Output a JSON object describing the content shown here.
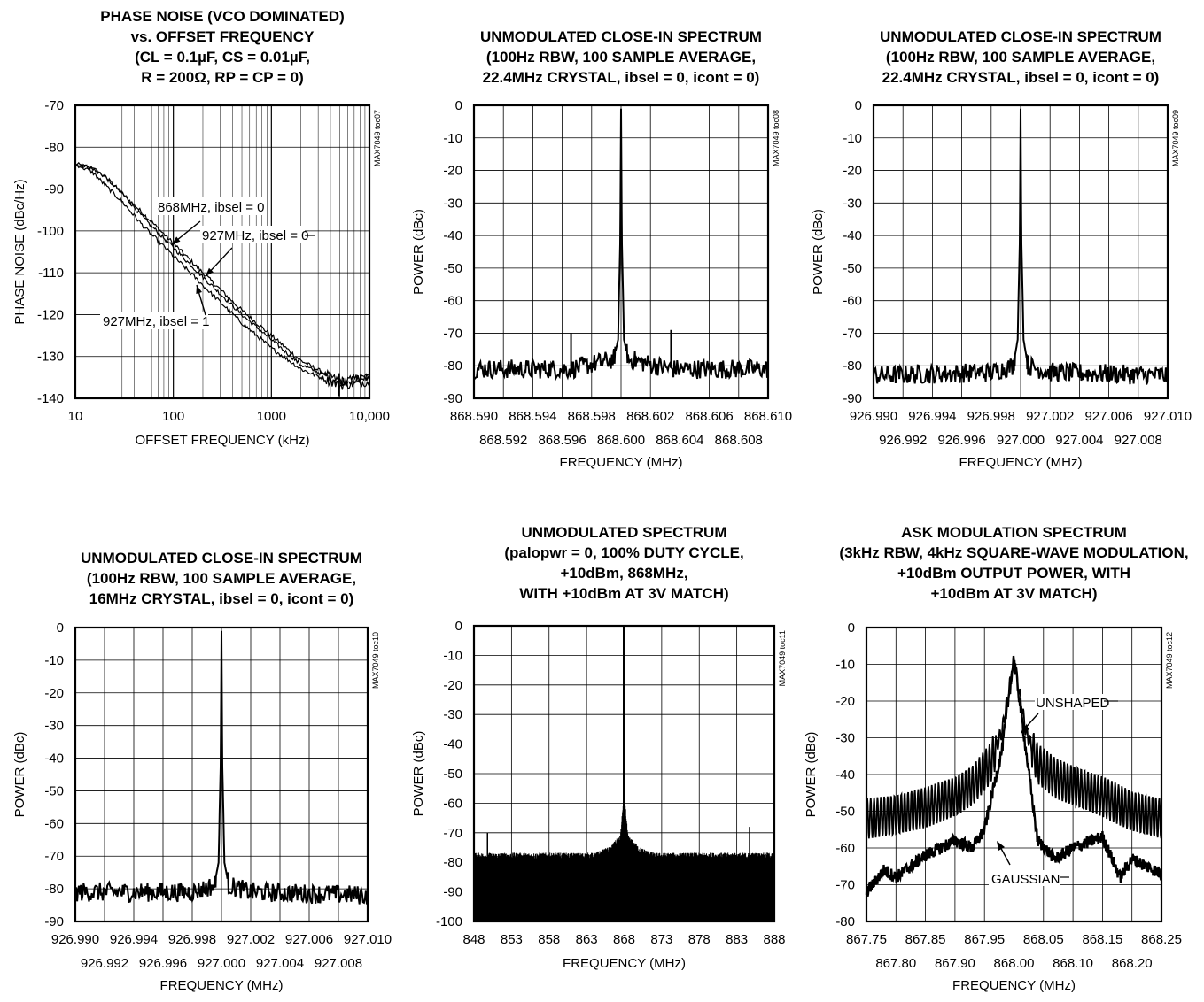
{
  "chart_data": [
    {
      "type": "line",
      "title_lines": [
        "PHASE NOISE (VCO DOMINATED)",
        "vs. OFFSET FREQUENCY",
        "(CL = 0.1µF, CS = 0.01µF,",
        "R = 200Ω, RP = CP = 0)"
      ],
      "xlabel": "OFFSET FREQUENCY (kHz)",
      "ylabel": "PHASE NOISE (dBc/Hz)",
      "tag": "MAX7049 toc07",
      "xscale": "log",
      "xlim": [
        10,
        10000
      ],
      "ylim": [
        -140,
        -70
      ],
      "x_ticks": [
        "10",
        "100",
        "1000",
        "10,000"
      ],
      "y_ticks": [
        "-70",
        "-80",
        "-90",
        "-100",
        "-110",
        "-120",
        "-130",
        "-140"
      ],
      "grid": true,
      "series": [
        {
          "name": "868MHz, ibsel = 0",
          "x": [
            10,
            15,
            20,
            30,
            50,
            100,
            200,
            500,
            1000,
            2000,
            5000,
            10000
          ],
          "y": [
            -84,
            -85,
            -87,
            -91,
            -96,
            -103,
            -110,
            -119,
            -125,
            -131,
            -136,
            -135
          ]
        },
        {
          "name": "927MHz, ibsel = 0",
          "x": [
            10,
            15,
            20,
            30,
            50,
            100,
            200,
            500,
            1000,
            2000,
            5000,
            10000
          ],
          "y": [
            -84,
            -85,
            -87,
            -91,
            -97,
            -104,
            -111,
            -120,
            -126,
            -132,
            -136,
            -135
          ]
        },
        {
          "name": "927MHz, ibsel = 1",
          "x": [
            10,
            15,
            20,
            30,
            50,
            100,
            200,
            500,
            1000,
            2000,
            5000,
            10000
          ],
          "y": [
            -84,
            -86,
            -89,
            -93,
            -99,
            -106,
            -113,
            -122,
            -128,
            -133,
            -137,
            -136
          ]
        }
      ],
      "annotations": [
        "868MHz, ibsel = 0",
        "927MHz, ibsel = 0",
        "927MHz, ibsel = 1"
      ]
    },
    {
      "type": "line",
      "title_lines": [
        "UNMODULATED CLOSE-IN SPECTRUM",
        "(100Hz RBW, 100 SAMPLE AVERAGE,",
        "22.4MHz CRYSTAL, ibsel = 0, icont = 0)"
      ],
      "xlabel": "FREQUENCY (MHz)",
      "ylabel": "POWER (dBc)",
      "tag": "MAX7049 toc08",
      "xlim": [
        868.59,
        868.61
      ],
      "ylim": [
        -90,
        0
      ],
      "x_ticks_top": [
        "868.590",
        "868.594",
        "868.598",
        "868.602",
        "868.606",
        "868.610"
      ],
      "x_ticks_bottom": [
        "868.592",
        "868.596",
        "868.600",
        "868.604",
        "868.608"
      ],
      "y_ticks": [
        "0",
        "-10",
        "-20",
        "-30",
        "-40",
        "-50",
        "-60",
        "-70",
        "-80",
        "-90"
      ],
      "grid": true,
      "series": [
        {
          "x": [
            868.59,
            868.5966,
            868.5995,
            868.5998,
            868.59995,
            868.6,
            868.60005,
            868.6002,
            868.6005,
            868.6034,
            868.61
          ],
          "y": [
            -81,
            -81,
            -78,
            -72,
            -40,
            -1,
            -40,
            -72,
            -78,
            -81,
            -81
          ]
        }
      ],
      "spurs": [
        {
          "x": 868.5966,
          "y": -70
        },
        {
          "x": 868.6034,
          "y": -69
        }
      ]
    },
    {
      "type": "line",
      "title_lines": [
        "UNMODULATED CLOSE-IN SPECTRUM",
        "(100Hz RBW, 100 SAMPLE AVERAGE,",
        "22.4MHz CRYSTAL, ibsel = 0, icont = 0)"
      ],
      "xlabel": "FREQUENCY (MHz)",
      "ylabel": "POWER (dBc)",
      "tag": "MAX7049 toc09",
      "xlim": [
        926.99,
        927.01
      ],
      "ylim": [
        -90,
        0
      ],
      "x_ticks_top": [
        "926.990",
        "926.994",
        "926.998",
        "927.002",
        "927.006",
        "927.010"
      ],
      "x_ticks_bottom": [
        "926.992",
        "926.996",
        "927.000",
        "927.004",
        "927.008"
      ],
      "y_ticks": [
        "0",
        "-10",
        "-20",
        "-30",
        "-40",
        "-50",
        "-60",
        "-70",
        "-80",
        "-90"
      ],
      "grid": true,
      "series": [
        {
          "x": [
            926.99,
            926.998,
            926.9995,
            926.9998,
            926.99995,
            927.0,
            927.00005,
            927.0002,
            927.0005,
            927.002,
            927.01
          ],
          "y": [
            -83,
            -82,
            -80,
            -72,
            -40,
            -1,
            -40,
            -72,
            -80,
            -82,
            -83
          ]
        }
      ]
    },
    {
      "type": "line",
      "title_lines": [
        "UNMODULATED CLOSE-IN SPECTRUM",
        "(100Hz RBW, 100 SAMPLE AVERAGE,",
        "16MHz CRYSTAL, ibsel = 0, icont = 0)"
      ],
      "xlabel": "FREQUENCY (MHz)",
      "ylabel": "POWER (dBc)",
      "tag": "MAX7049 toc10",
      "xlim": [
        926.99,
        927.01
      ],
      "ylim": [
        -90,
        0
      ],
      "x_ticks_top": [
        "926.990",
        "926.994",
        "926.998",
        "927.002",
        "927.006",
        "927.010"
      ],
      "x_ticks_bottom": [
        "926.992",
        "926.996",
        "927.000",
        "927.004",
        "927.008"
      ],
      "y_ticks": [
        "0",
        "-10",
        "-20",
        "-30",
        "-40",
        "-50",
        "-60",
        "-70",
        "-80",
        "-90"
      ],
      "grid": true,
      "series": [
        {
          "x": [
            926.99,
            926.998,
            926.9995,
            926.9998,
            926.99995,
            927.0,
            927.00005,
            927.0002,
            927.0005,
            927.002,
            927.01
          ],
          "y": [
            -81,
            -81,
            -79,
            -72,
            -40,
            -1,
            -40,
            -72,
            -79,
            -81,
            -82
          ]
        }
      ]
    },
    {
      "type": "line",
      "title_lines": [
        "UNMODULATED SPECTRUM",
        "(palopwr = 0, 100% DUTY CYCLE,",
        "+10dBm, 868MHz,",
        "WITH +10dBm AT 3V MATCH)"
      ],
      "xlabel": "FREQUENCY (MHz)",
      "ylabel": "POWER (dBc)",
      "tag": "MAX7049 toc11",
      "xlim": [
        848,
        888
      ],
      "ylim": [
        -100,
        0
      ],
      "x_ticks": [
        "848",
        "853",
        "858",
        "863",
        "868",
        "873",
        "878",
        "883",
        "888"
      ],
      "y_ticks": [
        "0",
        "-10",
        "-20",
        "-30",
        "-40",
        "-50",
        "-60",
        "-70",
        "-80",
        "-90",
        "-100"
      ],
      "grid": true,
      "series": [
        {
          "x": [
            848,
            864,
            866,
            867.5,
            867.9,
            868,
            868.1,
            868.5,
            870,
            872,
            888
          ],
          "y": [
            -78,
            -78,
            -76,
            -72,
            -60,
            0,
            -60,
            -72,
            -76,
            -78,
            -78
          ]
        }
      ],
      "spurs": [
        {
          "x": 849.8,
          "y": -70
        },
        {
          "x": 884.7,
          "y": -68
        }
      ]
    },
    {
      "type": "line",
      "title_lines": [
        "ASK MODULATION SPECTRUM",
        "(3kHz RBW, 4kHz SQUARE-WAVE MODULATION,",
        "+10dBm OUTPUT POWER, WITH",
        "+10dBm AT 3V MATCH)"
      ],
      "xlabel": "FREQUENCY (MHz)",
      "ylabel": "POWER (dBc)",
      "tag": "MAX7049 toc12",
      "xlim": [
        867.75,
        868.25
      ],
      "ylim": [
        -80,
        0
      ],
      "x_ticks_top": [
        "867.75",
        "867.85",
        "867.95",
        "868.05",
        "868.15",
        "868.25"
      ],
      "x_ticks_bottom": [
        "867.80",
        "867.90",
        "868.00",
        "868.10",
        "868.20"
      ],
      "y_ticks": [
        "0",
        "-10",
        "-20",
        "-30",
        "-40",
        "-50",
        "-60",
        "-70",
        "-80"
      ],
      "grid": true,
      "series": [
        {
          "name": "UNSHAPED",
          "x": [
            867.75,
            867.8,
            867.85,
            867.9,
            867.93,
            867.96,
            867.98,
            868.0,
            868.02,
            868.04,
            868.07,
            868.1,
            868.15,
            868.2,
            868.25
          ],
          "y": [
            -52,
            -51,
            -49,
            -46,
            -43,
            -37,
            -28,
            -9,
            -28,
            -37,
            -41,
            -43,
            -46,
            -50,
            -52
          ]
        },
        {
          "name": "GAUSSIAN",
          "x": [
            867.75,
            867.78,
            867.8,
            867.85,
            867.9,
            867.93,
            867.95,
            867.98,
            868.0,
            868.02,
            868.04,
            868.07,
            868.1,
            868.15,
            868.18,
            868.2,
            868.25
          ],
          "y": [
            -72,
            -66,
            -68,
            -62,
            -58,
            -60,
            -55,
            -33,
            -8,
            -33,
            -58,
            -63,
            -60,
            -57,
            -68,
            -63,
            -67
          ]
        }
      ],
      "annotations": [
        "UNSHAPED",
        "GAUSSIAN"
      ]
    }
  ]
}
